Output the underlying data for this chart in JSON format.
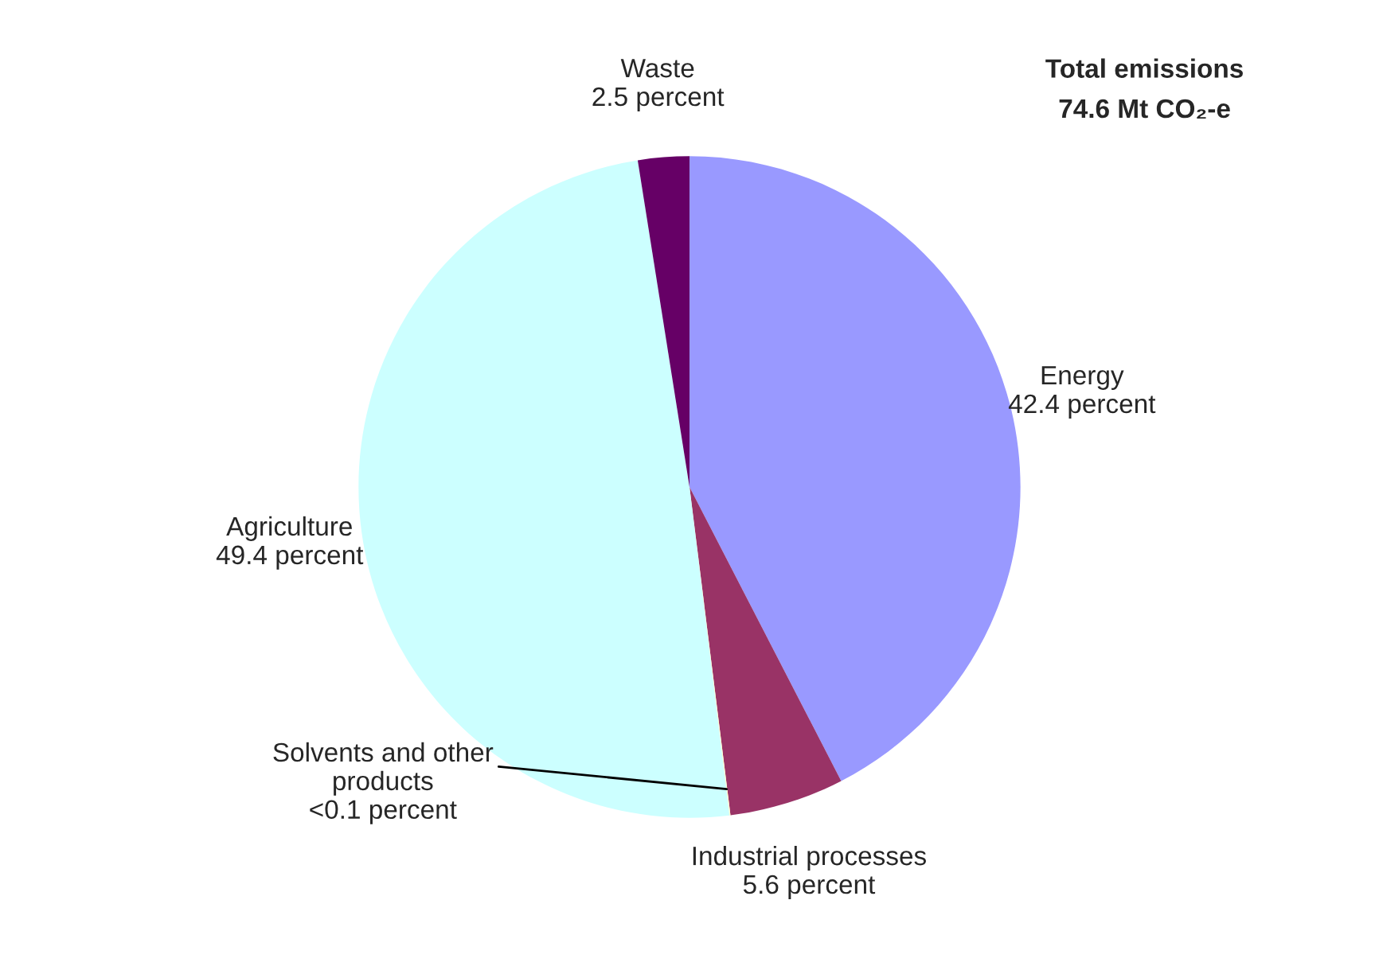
{
  "chart_data": {
    "type": "pie",
    "title": "Total emissions\n74.6 Mt CO₂-e",
    "categories": [
      "Energy",
      "Industrial processes",
      "Solvents and other\nproducts",
      "Agriculture",
      "Waste"
    ],
    "values": [
      42.4,
      5.6,
      0.05,
      49.4,
      2.5
    ],
    "value_labels": [
      "42.4 percent",
      "5.6 percent",
      "<0.1 percent",
      "49.4 percent",
      "2.5 percent"
    ],
    "colors": [
      "#9999ff",
      "#993366",
      "#ffffcc",
      "#ccffff",
      "#660066"
    ]
  }
}
